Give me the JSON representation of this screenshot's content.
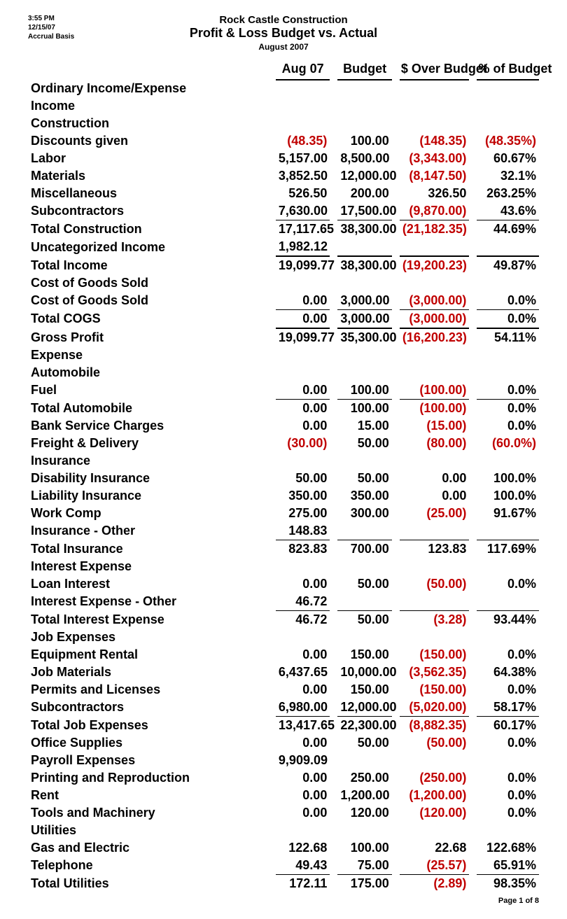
{
  "meta": {
    "time": "3:55 PM",
    "date": "12/15/07",
    "basis": "Accrual Basis"
  },
  "titles": {
    "company": "Rock Castle Construction",
    "report": "Profit & Loss Budget vs. Actual",
    "period": "August 2007"
  },
  "columns": {
    "c1": "Aug 07",
    "c2": "Budget",
    "c3": "$ Over Budget",
    "c4": "% of Budget"
  },
  "footer": "Page 1 of 8",
  "rows": [
    {
      "label": "Ordinary Income/Expense",
      "indent": 1,
      "bold": true
    },
    {
      "label": "Income",
      "indent": 2,
      "bold": true
    },
    {
      "label": "Construction",
      "indent": 3,
      "bold": true
    },
    {
      "label": "Discounts given",
      "indent": 4,
      "bold": true,
      "v": [
        [
          "(48.35)",
          true
        ],
        [
          "100.00",
          false
        ],
        [
          "(148.35)",
          true
        ],
        [
          "(48.35%)",
          true
        ]
      ]
    },
    {
      "label": "Labor",
      "indent": 4,
      "bold": true,
      "v": [
        [
          "5,157.00",
          false
        ],
        [
          "8,500.00",
          false
        ],
        [
          "(3,343.00)",
          true
        ],
        [
          "60.67%",
          false
        ]
      ]
    },
    {
      "label": "Materials",
      "indent": 4,
      "bold": true,
      "v": [
        [
          "3,852.50",
          false
        ],
        [
          "12,000.00",
          false
        ],
        [
          "(8,147.50)",
          true
        ],
        [
          "32.1%",
          false
        ]
      ]
    },
    {
      "label": "Miscellaneous",
      "indent": 4,
      "bold": true,
      "v": [
        [
          "526.50",
          false
        ],
        [
          "200.00",
          false
        ],
        [
          "326.50",
          false
        ],
        [
          "263.25%",
          false
        ]
      ]
    },
    {
      "label": "Subcontractors",
      "indent": 4,
      "bold": true,
      "v": [
        [
          "7,630.00",
          false
        ],
        [
          "17,500.00",
          false
        ],
        [
          "(9,870.00)",
          true
        ],
        [
          "43.6%",
          false
        ]
      ]
    },
    {
      "label": "Total Construction",
      "indent": 3,
      "bold": true,
      "top": "line",
      "v": [
        [
          "17,117.65",
          false
        ],
        [
          "38,300.00",
          false
        ],
        [
          "(21,182.35)",
          true
        ],
        [
          "44.69%",
          false
        ]
      ]
    },
    {
      "label": "Uncategorized Income",
      "indent": 3,
      "bold": true,
      "v": [
        [
          "1,982.12",
          false
        ]
      ]
    },
    {
      "label": "Total Income",
      "indent": 2,
      "bold": true,
      "top": "heavy",
      "v": [
        [
          "19,099.77",
          false
        ],
        [
          "38,300.00",
          false
        ],
        [
          "(19,200.23)",
          true
        ],
        [
          "49.87%",
          false
        ]
      ]
    },
    {
      "label": "Cost of Goods Sold",
      "indent": 2,
      "bold": true
    },
    {
      "label": "Cost of Goods Sold",
      "indent": 3,
      "bold": true,
      "v": [
        [
          "0.00",
          false
        ],
        [
          "3,000.00",
          false
        ],
        [
          "(3,000.00)",
          true
        ],
        [
          "0.0%",
          false
        ]
      ]
    },
    {
      "label": "Total COGS",
      "indent": 2,
      "bold": true,
      "top": "line",
      "v": [
        [
          "0.00",
          false
        ],
        [
          "3,000.00",
          false
        ],
        [
          "(3,000.00)",
          true
        ],
        [
          "0.0%",
          false
        ]
      ]
    },
    {
      "label": "Gross Profit",
      "indent": 1,
      "bold": true,
      "top": "heavy",
      "v": [
        [
          "19,099.77",
          false
        ],
        [
          "35,300.00",
          false
        ],
        [
          "(16,200.23)",
          true
        ],
        [
          "54.11%",
          false
        ]
      ]
    },
    {
      "label": "Expense",
      "indent": 2,
      "bold": true
    },
    {
      "label": "Automobile",
      "indent": 3,
      "bold": true
    },
    {
      "label": "Fuel",
      "indent": 4,
      "bold": true,
      "v": [
        [
          "0.00",
          false
        ],
        [
          "100.00",
          false
        ],
        [
          "(100.00)",
          true
        ],
        [
          "0.0%",
          false
        ]
      ]
    },
    {
      "label": "Total Automobile",
      "indent": 3,
      "bold": true,
      "top": "line",
      "v": [
        [
          "0.00",
          false
        ],
        [
          "100.00",
          false
        ],
        [
          "(100.00)",
          true
        ],
        [
          "0.0%",
          false
        ]
      ]
    },
    {
      "label": "Bank Service Charges",
      "indent": 3,
      "bold": true,
      "v": [
        [
          "0.00",
          false
        ],
        [
          "15.00",
          false
        ],
        [
          "(15.00)",
          true
        ],
        [
          "0.0%",
          false
        ]
      ]
    },
    {
      "label": "Freight & Delivery",
      "indent": 3,
      "bold": true,
      "v": [
        [
          "(30.00)",
          true
        ],
        [
          "50.00",
          false
        ],
        [
          "(80.00)",
          true
        ],
        [
          "(60.0%)",
          true
        ]
      ]
    },
    {
      "label": "Insurance",
      "indent": 3,
      "bold": true
    },
    {
      "label": "Disability Insurance",
      "indent": 4,
      "bold": true,
      "v": [
        [
          "50.00",
          false
        ],
        [
          "50.00",
          false
        ],
        [
          "0.00",
          false
        ],
        [
          "100.0%",
          false
        ]
      ]
    },
    {
      "label": "Liability Insurance",
      "indent": 4,
      "bold": true,
      "v": [
        [
          "350.00",
          false
        ],
        [
          "350.00",
          false
        ],
        [
          "0.00",
          false
        ],
        [
          "100.0%",
          false
        ]
      ]
    },
    {
      "label": "Work Comp",
      "indent": 4,
      "bold": true,
      "v": [
        [
          "275.00",
          false
        ],
        [
          "300.00",
          false
        ],
        [
          "(25.00)",
          true
        ],
        [
          "91.67%",
          false
        ]
      ]
    },
    {
      "label": "Insurance - Other",
      "indent": 4,
      "bold": true,
      "v": [
        [
          "148.83",
          false
        ]
      ]
    },
    {
      "label": "Total Insurance",
      "indent": 3,
      "bold": true,
      "top": "line",
      "v": [
        [
          "823.83",
          false
        ],
        [
          "700.00",
          false
        ],
        [
          "123.83",
          false
        ],
        [
          "117.69%",
          false
        ]
      ]
    },
    {
      "label": "Interest Expense",
      "indent": 3,
      "bold": true
    },
    {
      "label": "Loan Interest",
      "indent": 4,
      "bold": true,
      "v": [
        [
          "0.00",
          false
        ],
        [
          "50.00",
          false
        ],
        [
          "(50.00)",
          true
        ],
        [
          "0.0%",
          false
        ]
      ]
    },
    {
      "label": "Interest Expense - Other",
      "indent": 4,
      "bold": true,
      "v": [
        [
          "46.72",
          false
        ]
      ]
    },
    {
      "label": "Total Interest Expense",
      "indent": 3,
      "bold": true,
      "top": "line",
      "v": [
        [
          "46.72",
          false
        ],
        [
          "50.00",
          false
        ],
        [
          "(3.28)",
          true
        ],
        [
          "93.44%",
          false
        ]
      ]
    },
    {
      "label": "Job Expenses",
      "indent": 3,
      "bold": true
    },
    {
      "label": "Equipment Rental",
      "indent": 4,
      "bold": true,
      "v": [
        [
          "0.00",
          false
        ],
        [
          "150.00",
          false
        ],
        [
          "(150.00)",
          true
        ],
        [
          "0.0%",
          false
        ]
      ]
    },
    {
      "label": "Job Materials",
      "indent": 4,
      "bold": true,
      "v": [
        [
          "6,437.65",
          false
        ],
        [
          "10,000.00",
          false
        ],
        [
          "(3,562.35)",
          true
        ],
        [
          "64.38%",
          false
        ]
      ]
    },
    {
      "label": "Permits and Licenses",
      "indent": 4,
      "bold": true,
      "v": [
        [
          "0.00",
          false
        ],
        [
          "150.00",
          false
        ],
        [
          "(150.00)",
          true
        ],
        [
          "0.0%",
          false
        ]
      ]
    },
    {
      "label": "Subcontractors",
      "indent": 4,
      "bold": true,
      "v": [
        [
          "6,980.00",
          false
        ],
        [
          "12,000.00",
          false
        ],
        [
          "(5,020.00)",
          true
        ],
        [
          "58.17%",
          false
        ]
      ]
    },
    {
      "label": "Total Job Expenses",
      "indent": 3,
      "bold": true,
      "top": "line",
      "v": [
        [
          "13,417.65",
          false
        ],
        [
          "22,300.00",
          false
        ],
        [
          "(8,882.35)",
          true
        ],
        [
          "60.17%",
          false
        ]
      ]
    },
    {
      "label": "Office Supplies",
      "indent": 3,
      "bold": true,
      "v": [
        [
          "0.00",
          false
        ],
        [
          "50.00",
          false
        ],
        [
          "(50.00)",
          true
        ],
        [
          "0.0%",
          false
        ]
      ]
    },
    {
      "label": "Payroll Expenses",
      "indent": 3,
      "bold": true,
      "v": [
        [
          "9,909.09",
          false
        ]
      ]
    },
    {
      "label": "Printing and Reproduction",
      "indent": 3,
      "bold": true,
      "v": [
        [
          "0.00",
          false
        ],
        [
          "250.00",
          false
        ],
        [
          "(250.00)",
          true
        ],
        [
          "0.0%",
          false
        ]
      ]
    },
    {
      "label": "Rent",
      "indent": 3,
      "bold": true,
      "v": [
        [
          "0.00",
          false
        ],
        [
          "1,200.00",
          false
        ],
        [
          "(1,200.00)",
          true
        ],
        [
          "0.0%",
          false
        ]
      ]
    },
    {
      "label": "Tools and Machinery",
      "indent": 3,
      "bold": true,
      "v": [
        [
          "0.00",
          false
        ],
        [
          "120.00",
          false
        ],
        [
          "(120.00)",
          true
        ],
        [
          "0.0%",
          false
        ]
      ]
    },
    {
      "label": "Utilities",
      "indent": 3,
      "bold": true
    },
    {
      "label": "Gas and Electric",
      "indent": 4,
      "bold": true,
      "v": [
        [
          "122.68",
          false
        ],
        [
          "100.00",
          false
        ],
        [
          "22.68",
          false
        ],
        [
          "122.68%",
          false
        ]
      ]
    },
    {
      "label": "Telephone",
      "indent": 4,
      "bold": true,
      "v": [
        [
          "49.43",
          false
        ],
        [
          "75.00",
          false
        ],
        [
          "(25.57)",
          true
        ],
        [
          "65.91%",
          false
        ]
      ]
    },
    {
      "label": "Total Utilities",
      "indent": 3,
      "bold": true,
      "top": "line",
      "v": [
        [
          "172.11",
          false
        ],
        [
          "175.00",
          false
        ],
        [
          "(2.89)",
          true
        ],
        [
          "98.35%",
          false
        ]
      ]
    }
  ]
}
